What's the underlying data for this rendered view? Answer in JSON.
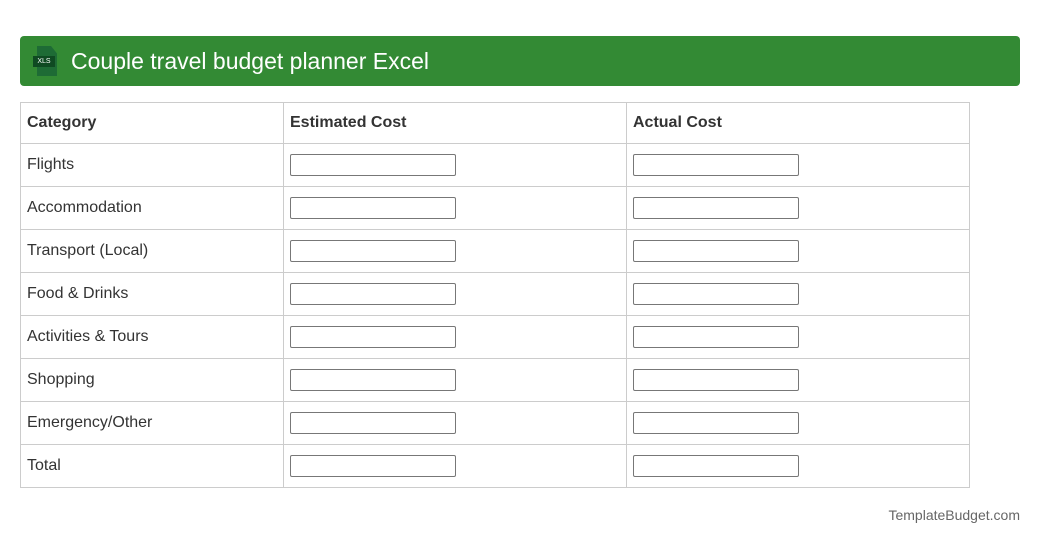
{
  "header": {
    "title": "Couple travel budget planner Excel",
    "icon": "xls-file-icon",
    "icon_label": "XLS",
    "color": "#338a34"
  },
  "table": {
    "columns": [
      "Category",
      "Estimated Cost",
      "Actual Cost"
    ],
    "rows": [
      {
        "category": "Flights",
        "estimated": "",
        "actual": ""
      },
      {
        "category": "Accommodation",
        "estimated": "",
        "actual": ""
      },
      {
        "category": "Transport (Local)",
        "estimated": "",
        "actual": ""
      },
      {
        "category": "Food & Drinks",
        "estimated": "",
        "actual": ""
      },
      {
        "category": "Activities & Tours",
        "estimated": "",
        "actual": ""
      },
      {
        "category": "Shopping",
        "estimated": "",
        "actual": ""
      },
      {
        "category": "Emergency/Other",
        "estimated": "",
        "actual": ""
      },
      {
        "category": "Total",
        "estimated": "",
        "actual": ""
      }
    ]
  },
  "footer": {
    "text": "TemplateBudget.com"
  }
}
